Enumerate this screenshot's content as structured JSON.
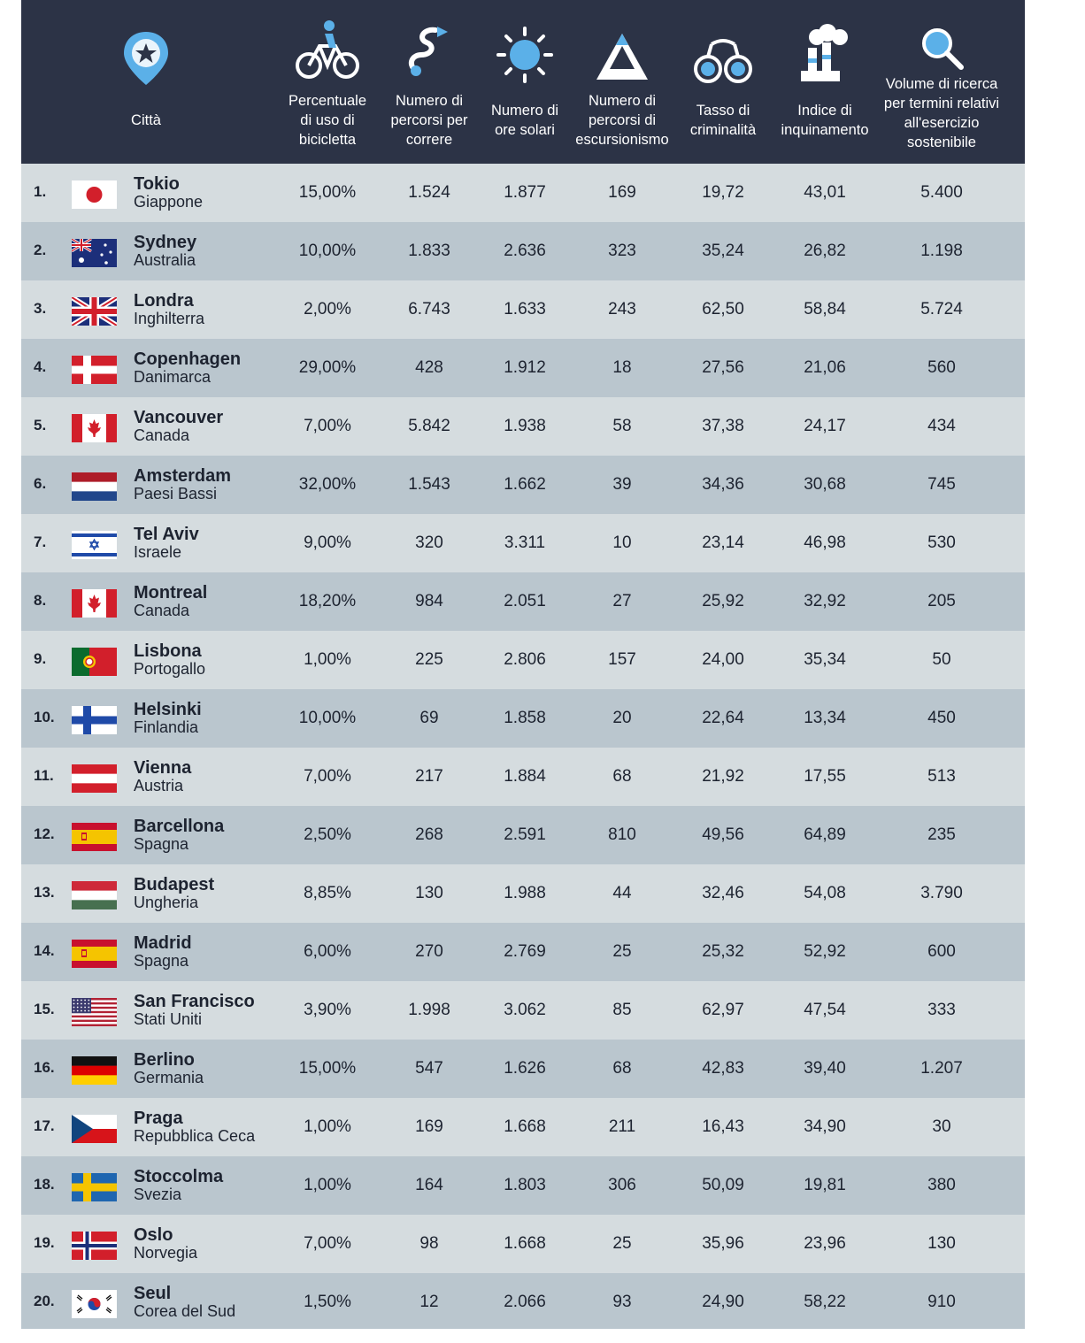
{
  "colors": {
    "header_bg": "#2c3346",
    "row_light": "#d5dcdf",
    "row_dark": "#bac6ce",
    "text": "#1d2330",
    "icon": "#ffffff",
    "icon_accent": "#5bb0e8"
  },
  "header": {
    "city": {
      "label": "Città",
      "icon": "map-pin-star-icon"
    },
    "columns": [
      {
        "label": "Percentuale\ndi uso di\nbicicletta",
        "icon": "bicycle-icon"
      },
      {
        "label": "Numero di\npercorsi per\ncorrere",
        "icon": "running-route-icon"
      },
      {
        "label": "Numero di\nore solari",
        "icon": "sun-icon"
      },
      {
        "label": "Numero di\npercorsi di\nescursionismo",
        "icon": "mountain-icon"
      },
      {
        "label": "Tasso di\ncriminalità",
        "icon": "handcuffs-icon"
      },
      {
        "label": "Indice di\ninquinamento",
        "icon": "factory-smoke-icon"
      },
      {
        "label": "Volume di ricerca\nper termini relativi\nall'esercizio\nsostenibile",
        "icon": "search-icon"
      }
    ]
  },
  "rows": [
    {
      "rank": "1.",
      "flag": "japan",
      "city": "Tokio",
      "country": "Giappone",
      "values": [
        "15,00%",
        "1.524",
        "1.877",
        "169",
        "19,72",
        "43,01",
        "5.400"
      ]
    },
    {
      "rank": "2.",
      "flag": "australia",
      "city": "Sydney",
      "country": "Australia",
      "values": [
        "10,00%",
        "1.833",
        "2.636",
        "323",
        "35,24",
        "26,82",
        "1.198"
      ]
    },
    {
      "rank": "3.",
      "flag": "uk",
      "city": "Londra",
      "country": "Inghilterra",
      "values": [
        "2,00%",
        "6.743",
        "1.633",
        "243",
        "62,50",
        "58,84",
        "5.724"
      ]
    },
    {
      "rank": "4.",
      "flag": "denmark",
      "city": "Copenhagen",
      "country": "Danimarca",
      "values": [
        "29,00%",
        "428",
        "1.912",
        "18",
        "27,56",
        "21,06",
        "560"
      ]
    },
    {
      "rank": "5.",
      "flag": "canada",
      "city": "Vancouver",
      "country": "Canada",
      "values": [
        "7,00%",
        "5.842",
        "1.938",
        "58",
        "37,38",
        "24,17",
        "434"
      ]
    },
    {
      "rank": "6.",
      "flag": "netherlands",
      "city": "Amsterdam",
      "country": "Paesi Bassi",
      "values": [
        "32,00%",
        "1.543",
        "1.662",
        "39",
        "34,36",
        "30,68",
        "745"
      ]
    },
    {
      "rank": "7.",
      "flag": "israel",
      "city": "Tel Aviv",
      "country": "Israele",
      "values": [
        "9,00%",
        "320",
        "3.311",
        "10",
        "23,14",
        "46,98",
        "530"
      ]
    },
    {
      "rank": "8.",
      "flag": "canada",
      "city": "Montreal",
      "country": "Canada",
      "values": [
        "18,20%",
        "984",
        "2.051",
        "27",
        "25,92",
        "32,92",
        "205"
      ]
    },
    {
      "rank": "9.",
      "flag": "portugal",
      "city": "Lisbona",
      "country": "Portogallo",
      "values": [
        "1,00%",
        "225",
        "2.806",
        "157",
        "24,00",
        "35,34",
        "50"
      ]
    },
    {
      "rank": "10.",
      "flag": "finland",
      "city": "Helsinki",
      "country": "Finlandia",
      "values": [
        "10,00%",
        "69",
        "1.858",
        "20",
        "22,64",
        "13,34",
        "450"
      ]
    },
    {
      "rank": "11.",
      "flag": "austria",
      "city": "Vienna",
      "country": "Austria",
      "values": [
        "7,00%",
        "217",
        "1.884",
        "68",
        "21,92",
        "17,55",
        "513"
      ]
    },
    {
      "rank": "12.",
      "flag": "spain",
      "city": "Barcellona",
      "country": "Spagna",
      "values": [
        "2,50%",
        "268",
        "2.591",
        "810",
        "49,56",
        "64,89",
        "235"
      ]
    },
    {
      "rank": "13.",
      "flag": "hungary",
      "city": "Budapest",
      "country": "Ungheria",
      "values": [
        "8,85%",
        "130",
        "1.988",
        "44",
        "32,46",
        "54,08",
        "3.790"
      ]
    },
    {
      "rank": "14.",
      "flag": "spain",
      "city": "Madrid",
      "country": "Spagna",
      "values": [
        "6,00%",
        "270",
        "2.769",
        "25",
        "25,32",
        "52,92",
        "600"
      ]
    },
    {
      "rank": "15.",
      "flag": "usa",
      "city": "San Francisco",
      "country": "Stati Uniti",
      "values": [
        "3,90%",
        "1.998",
        "3.062",
        "85",
        "62,97",
        "47,54",
        "333"
      ]
    },
    {
      "rank": "16.",
      "flag": "germany",
      "city": "Berlino",
      "country": "Germania",
      "values": [
        "15,00%",
        "547",
        "1.626",
        "68",
        "42,83",
        "39,40",
        "1.207"
      ]
    },
    {
      "rank": "17.",
      "flag": "czechia",
      "city": "Praga",
      "country": "Repubblica Ceca",
      "values": [
        "1,00%",
        "169",
        "1.668",
        "211",
        "16,43",
        "34,90",
        "30"
      ]
    },
    {
      "rank": "18.",
      "flag": "sweden",
      "city": "Stoccolma",
      "country": "Svezia",
      "values": [
        "1,00%",
        "164",
        "1.803",
        "306",
        "50,09",
        "19,81",
        "380"
      ]
    },
    {
      "rank": "19.",
      "flag": "norway",
      "city": "Oslo",
      "country": "Norvegia",
      "values": [
        "7,00%",
        "98",
        "1.668",
        "25",
        "35,96",
        "23,96",
        "130"
      ]
    },
    {
      "rank": "20.",
      "flag": "south-korea",
      "city": "Seul",
      "country": "Corea del Sud",
      "values": [
        "1,50%",
        "12",
        "2.066",
        "93",
        "24,90",
        "58,22",
        "910"
      ]
    }
  ]
}
